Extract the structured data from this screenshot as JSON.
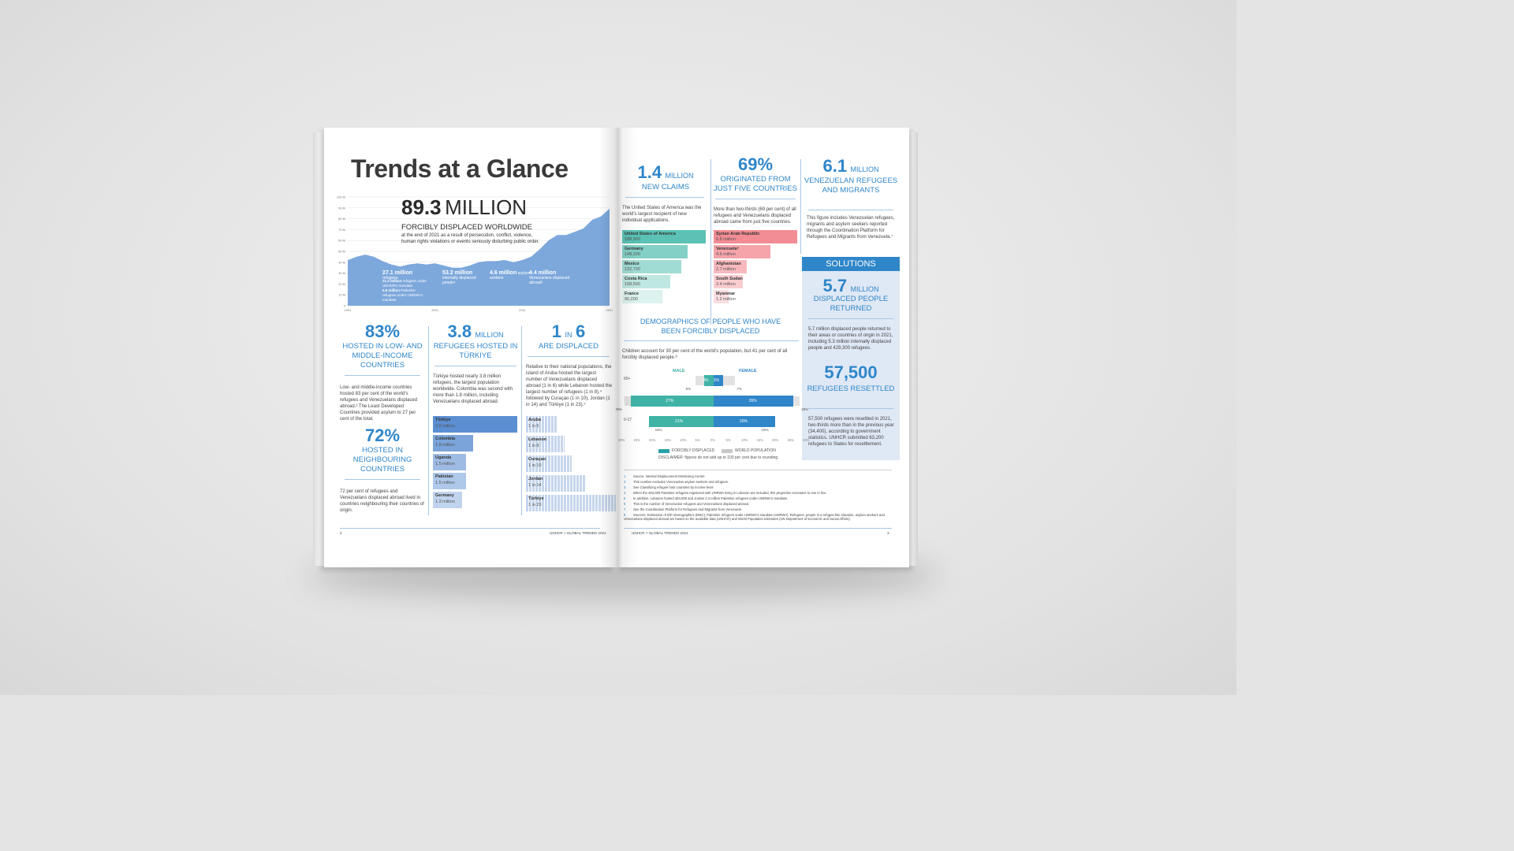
{
  "left": {
    "title": "Trends at a Glance",
    "headline_number": "89.3",
    "headline_unit": "MILLION",
    "headline_sub": "FORCIBLY DISPLACED WORLDWIDE",
    "headline_text": "at the end of 2021 as a result of persecution, conflict, violence, human rights violations or events seriously disturbing public order.",
    "chart_stats": [
      {
        "value": "27.1 million",
        "label": "refugees"
      },
      {
        "value": "53.2 million",
        "label": "internally displaced people¹"
      },
      {
        "value": "4.6 million",
        "label": "asylum seekers"
      },
      {
        "value": "4.4 million",
        "label": "Venezuelans displaced abroad²"
      }
    ],
    "chart_sub1_value": "21.3 million",
    "chart_sub1_label": "refugees under UNHCR's mandate",
    "chart_sub2_value": "5.8 million",
    "chart_sub2_label": "Palestine refugees under UNRWA's mandate",
    "col1_big": "83%",
    "col1_cap": "HOSTED IN LOW- AND MIDDLE-INCOME COUNTRIES",
    "col1_text": "Low- and middle-income countries hosted 83 per cent of the world's refugees and Venezuelans displaced abroad.³ The Least Developed Countries provided asylum to 27 per cent of the total.",
    "col1_big2": "72%",
    "col1_cap2": "HOSTED IN NEIGHBOURING COUNTRIES",
    "col1_text2": "72 per cent of refugees and Venezuelans displaced abroad lived in countries neighbouring their countries of origin.",
    "col2_big": "3.8",
    "col2_unit": "MILLION",
    "col2_cap": "REFUGEES HOSTED IN TÜRKIYE",
    "col2_text": "Türkiye hosted nearly 3.8 million refugees, the largest population worldwide. Colombia was second with more than 1.8 million, including Venezuelans displaced abroad.",
    "col2_bars": [
      {
        "name": "Türkiye",
        "value": "3.8 million",
        "num": 3.8
      },
      {
        "name": "Colombia",
        "value": "1.8 million",
        "num": 1.8
      },
      {
        "name": "Uganda",
        "value": "1.5 million",
        "num": 1.5
      },
      {
        "name": "Pakistan",
        "value": "1.5 million",
        "num": 1.5
      },
      {
        "name": "Germany",
        "value": "1.3 million",
        "num": 1.3
      }
    ],
    "col3_big1": "1",
    "col3_in": "IN",
    "col3_big2": "6",
    "col3_cap": "ARE DISPLACED",
    "col3_text": "Relative to their national populations, the island of Aruba hosted the largest number of Venezuelans displaced abroad (1 in 6) while Lebanon hosted the largest number of refugees (1 in 8),⁴ followed by Curaçao (1 in 10), Jordan (1 in 14) and Türkiye (1 in 23).⁵",
    "col3_bars": [
      {
        "name": "Aruba",
        "value": "1 in 6",
        "n": 6
      },
      {
        "name": "Lebanon",
        "value": "1 in 8",
        "n": 8
      },
      {
        "name": "Curaçao",
        "value": "1 in 10",
        "n": 10
      },
      {
        "name": "Jordan",
        "value": "1 in 14",
        "n": 14
      },
      {
        "name": "Türkiye",
        "value": "1 in 23",
        "n": 23
      }
    ],
    "page_number": "2",
    "footer": "UNHCR > GLOBAL TRENDS 2021"
  },
  "right": {
    "c1_big": "1.4",
    "c1_unit": "MILLION",
    "c1_cap": "NEW CLAIMS",
    "c1_text": "The United States of America was the world's largest recipient of new individual applications.",
    "c1_bars": [
      {
        "name": "United States of America",
        "value": "188,900",
        "num": 188900
      },
      {
        "name": "Germany",
        "value": "148,200",
        "num": 148200
      },
      {
        "name": "Mexico",
        "value": "132,700",
        "num": 132700
      },
      {
        "name": "Costa Rica",
        "value": "108,500",
        "num": 108500
      },
      {
        "name": "France",
        "value": "90,200",
        "num": 90200
      }
    ],
    "c2_big": "69%",
    "c2_cap": "ORIGINATED FROM JUST FIVE COUNTRIES",
    "c2_text": "More than two-thirds (69 per cent) of all refugees and Venezuelans displaced abroad came from just five countries.",
    "c2_bars": [
      {
        "name": "Syrian Arab Republic",
        "value": "6.8 million",
        "num": 6.8
      },
      {
        "name": "Venezuela⁶",
        "value": "4.6 million",
        "num": 4.6
      },
      {
        "name": "Afghanistan",
        "value": "2.7 million",
        "num": 2.7
      },
      {
        "name": "South Sudan",
        "value": "2.4 million",
        "num": 2.4
      },
      {
        "name": "Myanmar",
        "value": "1.2 million",
        "num": 1.2
      }
    ],
    "c3_big": "6.1",
    "c3_unit": "MILLION",
    "c3_cap": "VENEZUELAN REFUGEES AND MIGRANTS",
    "c3_text": "This figure includes Venezuelan refugees, migrants and asylum seekers reported through the Coordination Platform for Refugees and Migrants from Venezuela.⁷",
    "solutions_label": "SOLUTIONS",
    "s1_big": "5.7",
    "s1_unit": "MILLION",
    "s1_cap": "DISPLACED PEOPLE RETURNED",
    "s1_text": "5.7 million displaced people returned to their areas or countries of origin in 2021, including 5.3 million internally displaced people and 429,300 refugees.",
    "s2_big": "57,500",
    "s2_cap": "REFUGEES RESETTLED",
    "s2_text": "57,500 refugees were resettled in 2021, two-thirds more than in the previous year (34,400), according to government statistics. UNHCR submitted 63,200 refugees to States for resettlement.",
    "demo_title": "DEMOGRAPHICS OF PEOPLE WHO HAVE BEEN FORCIBLY DISPLACED",
    "demo_text": "Children account for 30 per cent of the world's population, but 41 per cent of all forcibly displaced people.⁸",
    "demo_male": "MALE",
    "demo_female": "FEMALE",
    "demo_rows": [
      {
        "age": "60+",
        "male": "3%",
        "female": "3%",
        "m": 3,
        "f": 3,
        "wm": "6%",
        "wf": "7%",
        "wmv": 6,
        "wfv": 7
      },
      {
        "age": "18-59",
        "male": "27%",
        "female": "26%",
        "m": 27,
        "f": 26,
        "wm": "29%",
        "wf": "28%",
        "wmv": 29,
        "wfv": 28
      },
      {
        "age": "0-17",
        "male": "21%",
        "female": "20%",
        "m": 21,
        "f": 20,
        "wm": "16%",
        "wf": "15%",
        "wmv": 16,
        "wfv": 15
      }
    ],
    "demo_axis": [
      "30%",
      "25%",
      "20%",
      "15%",
      "10%",
      "5%",
      "0%",
      "5%",
      "10%",
      "15%",
      "20%",
      "25%",
      "30%"
    ],
    "legend_fd": "FORCIBLY DISPLACED",
    "legend_wp": "WORLD POPULATION",
    "disclaimer": "DISCLAIMER: figures do not add up to 100 per cent due to rounding.",
    "footnotes": [
      "Source: Internal Displacement Monitoring Centre",
      "This number excludes Venezuelan asylum seekers and refugees.",
      "See Classifying refugee host countries by income level",
      "When the 483,000 Palestine refugees registered with UNRWA living in Lebanon are included, this proportion increases to one in five.",
      "In addition, Lebanon hosted 483,000 and Jordan 2.3 million Palestine refugees under UNRWA's mandate.",
      "This is the number of Venezuelan refugees and Venezuelans displaced abroad.",
      "See the Coordination Platform for Refugees and Migrants from Venezuela",
      "Sources: Estimation of IDP demographics (DMC); Palestine refugees under UNRWA's mandate (UNRWA); Refugees, people in a refugee-like situation, asylum seekers and Venezuelans displaced abroad are based on the available data (UNHCR) and World Population estimates (UN Department of Economic and Social Affairs)."
    ],
    "page_number": "3",
    "footer": "UNHCR > GLOBAL TRENDS 2021"
  },
  "chart_data": {
    "type": "area",
    "x": [
      1991,
      1992,
      1993,
      1994,
      1995,
      1996,
      1997,
      1998,
      1999,
      2000,
      2001,
      2002,
      2003,
      2004,
      2005,
      2006,
      2007,
      2008,
      2009,
      2010,
      2011,
      2012,
      2013,
      2014,
      2015,
      2016,
      2017,
      2018,
      2019,
      2020,
      2021
    ],
    "y": [
      42,
      45,
      47,
      45,
      41,
      38,
      36,
      38,
      39,
      38,
      39,
      37,
      35,
      35,
      37,
      40,
      41,
      41,
      42,
      40,
      42,
      45,
      52,
      60,
      65,
      65,
      68,
      71,
      79,
      82,
      89.3
    ],
    "xticks": [
      "1991",
      "2001",
      "2011",
      "2021"
    ],
    "yticks": [
      "0",
      "10 M",
      "20 M",
      "30 M",
      "40 M",
      "50 M",
      "60 M",
      "70 M",
      "80 M",
      "90 M",
      "100 M"
    ],
    "ylim": [
      0,
      100
    ],
    "colors": {
      "area": "#6f9fd8",
      "bars_blue": "#5b8fd2",
      "teal": "#5bc2b5",
      "pink": "#f28d95",
      "accent": "#2f86c9"
    }
  }
}
